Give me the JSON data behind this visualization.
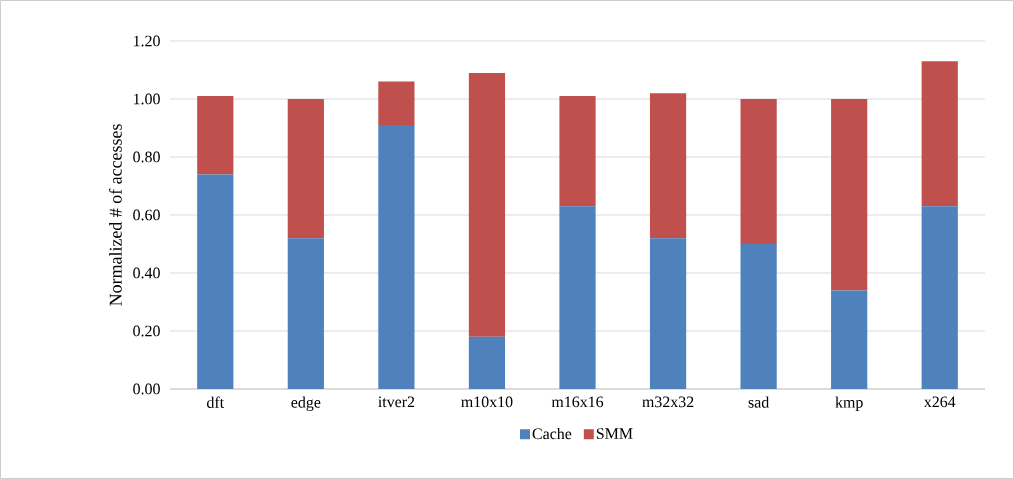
{
  "chart_data": {
    "type": "bar",
    "stacked": true,
    "ylabel": "Normalized # of accesses",
    "categories": [
      "dft",
      "edge",
      "itver2",
      "m10x10",
      "m16x16",
      "m32x32",
      "sad",
      "kmp",
      "x264"
    ],
    "series": [
      {
        "name": "Cache",
        "color": "#4f81bd",
        "values": [
          0.74,
          0.52,
          0.91,
          0.18,
          0.63,
          0.52,
          0.5,
          0.34,
          0.63
        ]
      },
      {
        "name": "SMM",
        "color": "#c0504d",
        "values": [
          0.27,
          0.48,
          0.15,
          0.91,
          0.38,
          0.5,
          0.5,
          0.66,
          0.5
        ]
      }
    ],
    "ylim": [
      0,
      1.2
    ],
    "yticks": [
      {
        "value": 0,
        "label": "0.00"
      },
      {
        "value": 0.2,
        "label": "0.20"
      },
      {
        "value": 0.4,
        "label": "0.40"
      },
      {
        "value": 0.6,
        "label": "0.60"
      },
      {
        "value": 0.8,
        "label": "0.80"
      },
      {
        "value": 1.0,
        "label": "1.00"
      },
      {
        "value": 1.2,
        "label": "1.20"
      }
    ],
    "grid": "y",
    "legend": "bottom"
  }
}
